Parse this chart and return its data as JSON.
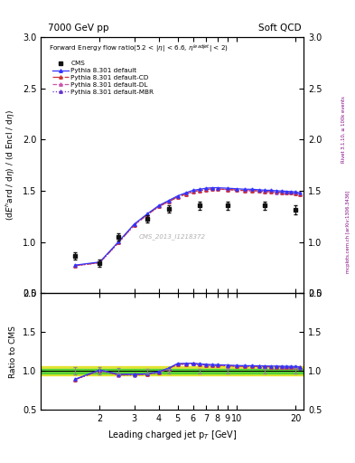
{
  "title_left": "7000 GeV pp",
  "title_right": "Soft QCD",
  "xlabel": "Leading charged jet p$_{T}$ [GeV]",
  "ylabel_main": "(dE$^{h}$ard / dη) / (d Encl / dη)",
  "ylabel_ratio": "Ratio to CMS",
  "side_label_right": "mcplots.cern.ch [arXiv:1306.3436]",
  "side_label_right2": "Rivet 3.1.10, ≥ 100k events",
  "watermark": "CMS_2013_I1218372",
  "cms_x": [
    1.5,
    2.0,
    2.5,
    3.5,
    4.5,
    6.5,
    9.0,
    14.0,
    20.0
  ],
  "cms_y": [
    0.865,
    0.795,
    1.05,
    1.225,
    1.325,
    1.355,
    1.355,
    1.355,
    1.315
  ],
  "cms_yerr": [
    0.038,
    0.038,
    0.038,
    0.038,
    0.038,
    0.038,
    0.038,
    0.038,
    0.045
  ],
  "py_x": [
    1.5,
    2.0,
    2.5,
    3.0,
    3.5,
    4.0,
    4.5,
    5.0,
    5.5,
    6.0,
    6.5,
    7.0,
    7.5,
    8.0,
    9.0,
    10.0,
    11.0,
    12.0,
    13.0,
    14.0,
    15.0,
    16.0,
    17.0,
    18.0,
    19.0,
    20.0,
    21.0
  ],
  "default_y": [
    0.775,
    0.805,
    1.005,
    1.175,
    1.275,
    1.355,
    1.405,
    1.45,
    1.48,
    1.505,
    1.515,
    1.525,
    1.53,
    1.53,
    1.525,
    1.52,
    1.515,
    1.515,
    1.51,
    1.505,
    1.505,
    1.5,
    1.498,
    1.495,
    1.492,
    1.49,
    1.48
  ],
  "cd_y": [
    0.77,
    0.8,
    0.998,
    1.168,
    1.268,
    1.348,
    1.395,
    1.44,
    1.468,
    1.493,
    1.503,
    1.513,
    1.518,
    1.518,
    1.513,
    1.508,
    1.503,
    1.502,
    1.499,
    1.493,
    1.492,
    1.488,
    1.485,
    1.483,
    1.48,
    1.477,
    1.468
  ],
  "dl_y": [
    0.769,
    0.799,
    0.997,
    1.167,
    1.267,
    1.347,
    1.394,
    1.439,
    1.467,
    1.492,
    1.502,
    1.512,
    1.517,
    1.517,
    1.512,
    1.507,
    1.502,
    1.501,
    1.498,
    1.492,
    1.491,
    1.487,
    1.484,
    1.482,
    1.479,
    1.476,
    1.467
  ],
  "mbr_y": [
    0.768,
    0.798,
    0.996,
    1.166,
    1.266,
    1.346,
    1.393,
    1.438,
    1.466,
    1.491,
    1.501,
    1.511,
    1.516,
    1.516,
    1.511,
    1.506,
    1.501,
    1.5,
    1.497,
    1.491,
    1.49,
    1.486,
    1.483,
    1.481,
    1.478,
    1.475,
    1.466
  ],
  "ratio_default_y": [
    0.895,
    1.013,
    0.957,
    0.957,
    0.963,
    0.99,
    1.037,
    1.096,
    1.097,
    1.1,
    1.091,
    1.085,
    1.082,
    1.08,
    1.075,
    1.07,
    1.068,
    1.067,
    1.066,
    1.064,
    1.063,
    1.062,
    1.061,
    1.059,
    1.058,
    1.057,
    1.053
  ],
  "ratio_cd_y": [
    0.89,
    1.007,
    0.95,
    0.951,
    0.957,
    0.982,
    1.03,
    1.088,
    1.089,
    1.092,
    1.083,
    1.077,
    1.074,
    1.072,
    1.067,
    1.062,
    1.06,
    1.059,
    1.057,
    1.055,
    1.054,
    1.053,
    1.051,
    1.05,
    1.048,
    1.047,
    1.044
  ],
  "ratio_dl_y": [
    0.889,
    1.006,
    0.949,
    0.95,
    0.956,
    0.981,
    1.029,
    1.087,
    1.088,
    1.091,
    1.082,
    1.076,
    1.073,
    1.071,
    1.066,
    1.061,
    1.059,
    1.058,
    1.056,
    1.054,
    1.053,
    1.052,
    1.05,
    1.049,
    1.047,
    1.046,
    1.043
  ],
  "ratio_mbr_y": [
    0.888,
    1.005,
    0.948,
    0.949,
    0.955,
    0.98,
    1.028,
    1.086,
    1.087,
    1.09,
    1.081,
    1.075,
    1.072,
    1.07,
    1.065,
    1.06,
    1.058,
    1.057,
    1.055,
    1.053,
    1.052,
    1.051,
    1.049,
    1.048,
    1.046,
    1.045,
    1.042
  ],
  "ratio_cms_yerr": [
    0.044,
    0.048,
    0.036,
    0.031,
    0.029,
    0.028,
    0.028,
    0.028,
    0.034
  ],
  "color_default": "#3333ff",
  "color_cd": "#cc3333",
  "color_dl": "#cc55aa",
  "color_mbr": "#6633cc",
  "color_cms": "#111111",
  "color_green_band": "#33cc33",
  "color_yellow_band": "#dddd00",
  "ylim_main": [
    0.5,
    3.0
  ],
  "ylim_ratio": [
    0.5,
    2.0
  ],
  "xlim": [
    1.0,
    22.0
  ],
  "yticks_main": [
    0.5,
    1.0,
    1.5,
    2.0,
    2.5,
    3.0
  ],
  "yticks_ratio": [
    0.5,
    1.0,
    1.5,
    2.0
  ],
  "xticks": [
    2,
    3,
    4,
    5,
    6,
    7,
    8,
    9,
    10,
    20
  ]
}
